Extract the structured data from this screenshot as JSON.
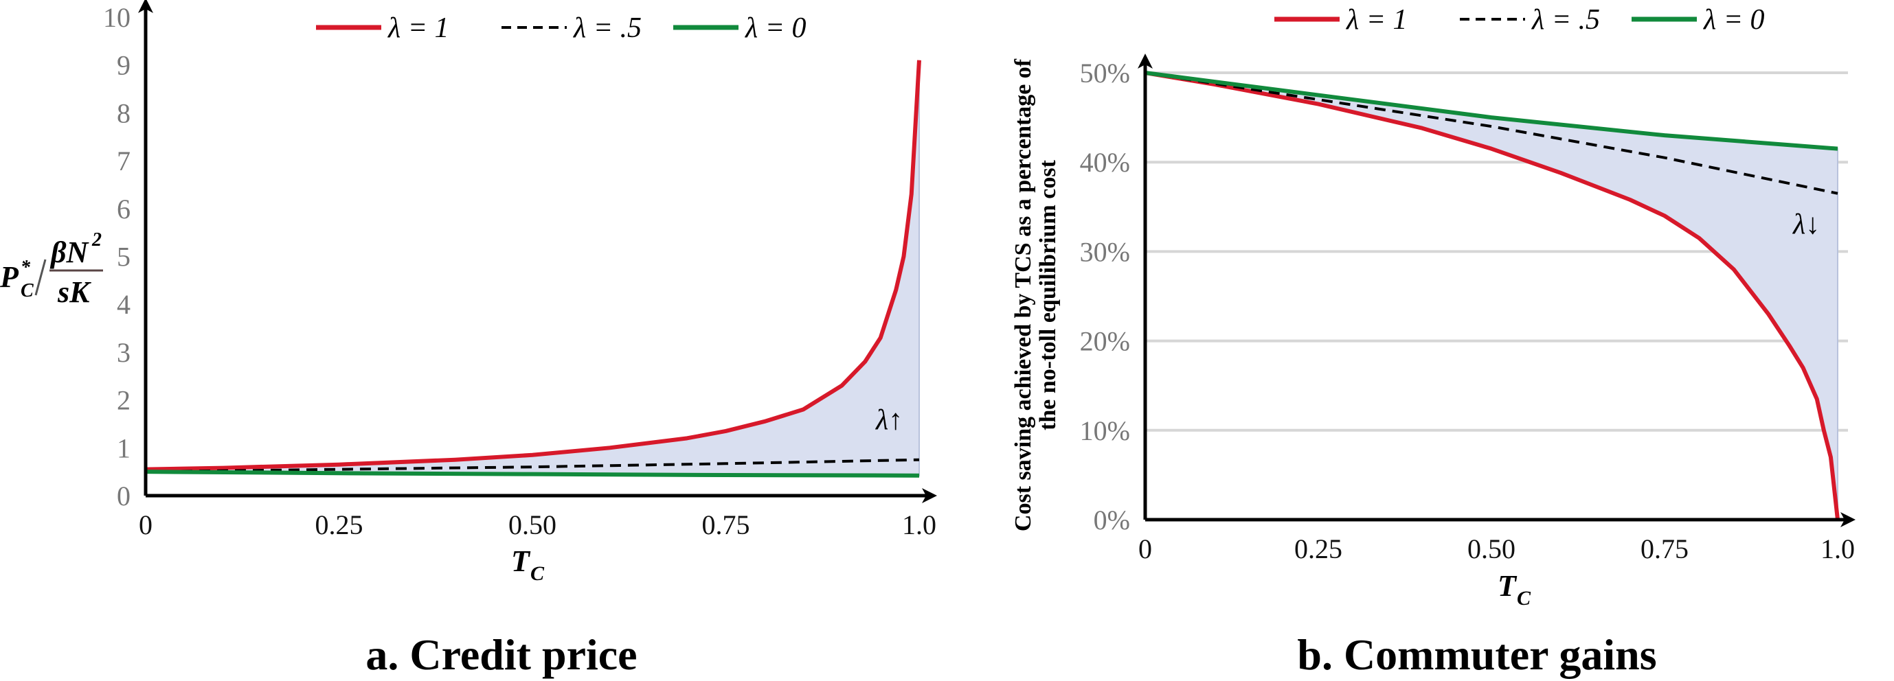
{
  "chart_data": [
    {
      "type": "line",
      "caption": "a. Credit price",
      "ylabel": {
        "num_main": "P",
        "num_sup": "*",
        "num_sub": "C",
        "frac_top": "βN",
        "frac_top_sup": "2",
        "frac_bottom": "sK"
      },
      "xlabel": {
        "main": "T",
        "sub": "C"
      },
      "xlim": [
        0,
        1.0
      ],
      "ylim": [
        0,
        10
      ],
      "xticks": [
        "0",
        "0.25",
        "0.50",
        "0.75",
        "1.0"
      ],
      "yticks": [
        "0",
        "1",
        "2",
        "3",
        "4",
        "5",
        "6",
        "7",
        "8",
        "9",
        "10"
      ],
      "grid": false,
      "legend": "top",
      "annotation": "λ↑",
      "series": [
        {
          "name": "λ = 1",
          "color": "#d7192a",
          "style": "solid",
          "x": [
            0,
            0.1,
            0.25,
            0.4,
            0.5,
            0.6,
            0.7,
            0.75,
            0.8,
            0.85,
            0.9,
            0.93,
            0.95,
            0.97,
            0.98,
            0.99,
            1.0
          ],
          "y": [
            0.55,
            0.58,
            0.65,
            0.75,
            0.85,
            1.0,
            1.2,
            1.35,
            1.55,
            1.8,
            2.3,
            2.8,
            3.3,
            4.3,
            5.0,
            6.3,
            9.1
          ]
        },
        {
          "name": "λ = .5",
          "color": "#000000",
          "style": "dashed",
          "x": [
            0,
            0.25,
            0.5,
            0.75,
            1.0
          ],
          "y": [
            0.5,
            0.55,
            0.6,
            0.67,
            0.75
          ]
        },
        {
          "name": "λ = 0",
          "color": "#118a3c",
          "style": "solid",
          "x": [
            0,
            0.25,
            0.5,
            0.75,
            1.0
          ],
          "y": [
            0.5,
            0.47,
            0.45,
            0.43,
            0.42
          ]
        }
      ]
    },
    {
      "type": "line",
      "caption": "b. Commuter gains",
      "ylabel": {
        "line1": "Cost saving achieved by TCS as a percentage of",
        "line2": "the no-toll equilibrium cost"
      },
      "xlabel": {
        "main": "T",
        "sub": "C"
      },
      "xlim": [
        0,
        1.0
      ],
      "ylim": [
        0,
        50
      ],
      "xticks": [
        "0",
        "0.25",
        "0.50",
        "0.75",
        "1.0"
      ],
      "yticks": [
        "0%",
        "10%",
        "20%",
        "30%",
        "40%",
        "50%"
      ],
      "grid": true,
      "legend": "top",
      "annotation": "λ↓",
      "series": [
        {
          "name": "λ = 1",
          "color": "#d7192a",
          "style": "solid",
          "x": [
            0,
            0.1,
            0.25,
            0.4,
            0.5,
            0.6,
            0.7,
            0.75,
            0.8,
            0.85,
            0.9,
            0.93,
            0.95,
            0.97,
            0.98,
            0.99,
            1.0
          ],
          "y": [
            50,
            48.7,
            46.5,
            43.8,
            41.5,
            38.8,
            35.8,
            34,
            31.5,
            28,
            23,
            19.5,
            17,
            13.5,
            10,
            7,
            0
          ]
        },
        {
          "name": "λ = .5",
          "color": "#000000",
          "style": "dashed",
          "x": [
            0,
            0.25,
            0.5,
            0.75,
            1.0
          ],
          "y": [
            50,
            47,
            44,
            40.5,
            36.5
          ]
        },
        {
          "name": "λ = 0",
          "color": "#118a3c",
          "style": "solid",
          "x": [
            0,
            0.25,
            0.5,
            0.75,
            1.0
          ],
          "y": [
            50,
            47.5,
            45,
            43,
            41.5
          ]
        }
      ]
    }
  ]
}
